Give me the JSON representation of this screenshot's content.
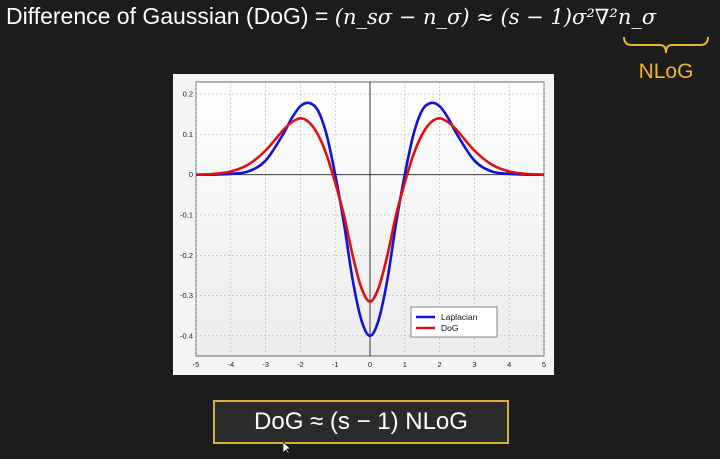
{
  "heading": {
    "prefix": "Difference of Gaussian (DoG) = ",
    "formula": "(n_sσ − n_σ) ≈ (s − 1)σ²∇²n_σ",
    "brace_label": "NLoG"
  },
  "result": {
    "text": "DoG ≈ (s − 1) NLoG"
  },
  "colors": {
    "background": "#1c1c1c",
    "accent_yellow": "#f0b429",
    "laplacian": "#1010e0",
    "dog": "#e01010"
  },
  "chart_data": {
    "type": "line",
    "title": "",
    "xlabel": "",
    "ylabel": "",
    "xlim": [
      -5,
      5
    ],
    "ylim": [
      -0.45,
      0.23
    ],
    "x_ticks": [
      -5,
      -4,
      -3,
      -2,
      -1,
      0,
      1,
      2,
      3,
      4,
      5
    ],
    "y_ticks": [
      0.2,
      0.1,
      0,
      -0.1,
      -0.2,
      -0.3,
      -0.4
    ],
    "x_tick_labels": [
      "-5",
      "-4",
      "-3",
      "-2",
      "-1",
      "0",
      "1",
      "2",
      "3",
      "4",
      "5"
    ],
    "y_tick_labels": [
      "0.2",
      "0.1",
      "0",
      "-0.1",
      "-0.2",
      "-0.3",
      "-0.4"
    ],
    "grid": true,
    "legend": "bottom-right",
    "series": [
      {
        "name": "Laplacian",
        "color": "#1010e0",
        "x": [
          -5,
          -4.5,
          -4,
          -3.5,
          -3,
          -2.5,
          -2.25,
          -2,
          -1.75,
          -1.5,
          -1.25,
          -1,
          -0.75,
          -0.5,
          -0.25,
          0,
          0.25,
          0.5,
          0.75,
          1,
          1.25,
          1.5,
          1.75,
          2,
          2.25,
          2.5,
          3,
          3.5,
          4,
          4.5,
          5
        ],
        "y": [
          0.0,
          0.0,
          0.002,
          0.008,
          0.035,
          0.1,
          0.14,
          0.17,
          0.178,
          0.16,
          0.1,
          0.0,
          -0.12,
          -0.26,
          -0.36,
          -0.4,
          -0.36,
          -0.26,
          -0.12,
          0.0,
          0.1,
          0.16,
          0.178,
          0.17,
          0.14,
          0.1,
          0.035,
          0.008,
          0.002,
          0.0,
          0.0
        ]
      },
      {
        "name": "DoG",
        "color": "#e01010",
        "x": [
          -5,
          -4.5,
          -4,
          -3.5,
          -3,
          -2.5,
          -2.25,
          -2,
          -1.75,
          -1.5,
          -1.25,
          -1,
          -0.75,
          -0.5,
          -0.25,
          0,
          0.25,
          0.5,
          0.75,
          1,
          1.25,
          1.5,
          1.75,
          2,
          2.25,
          2.5,
          3,
          3.5,
          4,
          4.5,
          5
        ],
        "y": [
          0.0,
          0.002,
          0.008,
          0.025,
          0.06,
          0.11,
          0.13,
          0.14,
          0.13,
          0.1,
          0.05,
          -0.02,
          -0.1,
          -0.2,
          -0.28,
          -0.315,
          -0.28,
          -0.2,
          -0.1,
          -0.02,
          0.05,
          0.1,
          0.13,
          0.14,
          0.13,
          0.11,
          0.06,
          0.025,
          0.008,
          0.002,
          0.0
        ]
      }
    ]
  }
}
